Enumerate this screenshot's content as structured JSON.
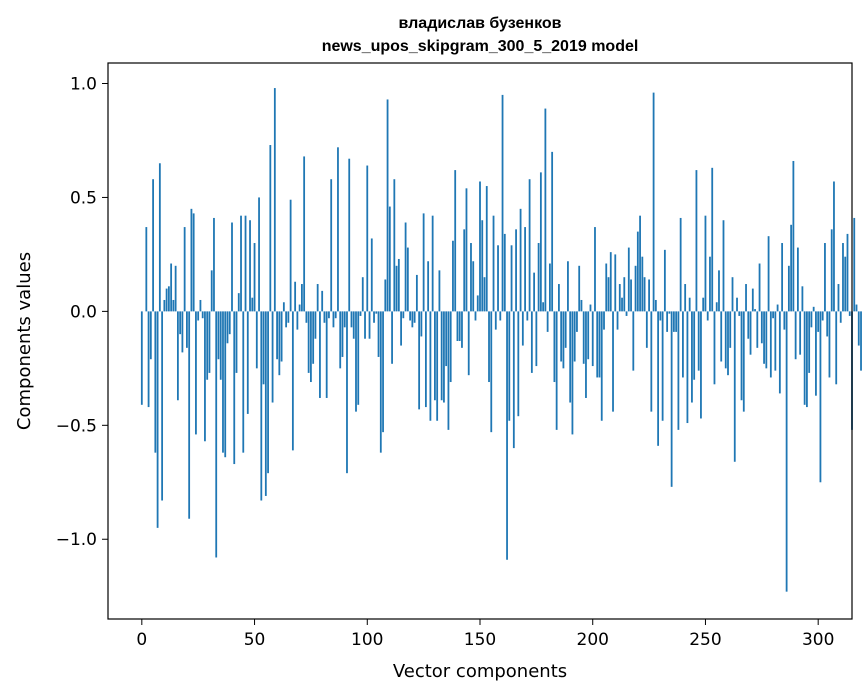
{
  "chart_data": {
    "type": "bar",
    "title_line1": "владислав бузенков",
    "title_line2": "news_upos_skipgram_300_5_2019 model",
    "xlabel": "Vector components",
    "ylabel": "Components values",
    "xlim": [
      -15,
      315
    ],
    "ylim": [
      -1.35,
      1.09
    ],
    "x_ticks": [
      0,
      50,
      100,
      150,
      200,
      250,
      300
    ],
    "x_tick_labels": [
      "0",
      "50",
      "100",
      "150",
      "200",
      "250",
      "300"
    ],
    "y_ticks": [
      1.0,
      0.5,
      0.0,
      -0.5,
      -1.0
    ],
    "y_tick_labels": [
      "1.0",
      "0.5",
      "0.0",
      "−0.5",
      "−1.0"
    ],
    "bar_color": "#1f77b4",
    "grid": false,
    "values": [
      -0.41,
      0.0,
      0.37,
      -0.42,
      -0.21,
      0.58,
      -0.62,
      -0.95,
      0.65,
      -0.83,
      0.05,
      0.1,
      0.11,
      0.21,
      0.05,
      0.2,
      -0.39,
      -0.1,
      -0.18,
      0.37,
      -0.16,
      -0.91,
      0.45,
      0.43,
      -0.54,
      -0.04,
      0.05,
      -0.03,
      -0.57,
      -0.3,
      -0.27,
      0.18,
      0.41,
      -1.08,
      -0.21,
      -0.3,
      -0.62,
      -0.64,
      -0.14,
      -0.1,
      0.39,
      -0.67,
      -0.27,
      0.08,
      0.42,
      -0.62,
      0.42,
      -0.45,
      0.4,
      0.06,
      0.3,
      -0.25,
      0.5,
      -0.83,
      -0.32,
      -0.81,
      -0.71,
      0.73,
      -0.4,
      0.98,
      -0.21,
      -0.28,
      -0.22,
      0.04,
      -0.07,
      -0.05,
      0.49,
      -0.61,
      0.13,
      -0.08,
      0.03,
      0.12,
      0.68,
      -0.05,
      -0.27,
      -0.31,
      -0.23,
      -0.12,
      0.12,
      -0.38,
      0.09,
      -0.05,
      -0.38,
      -0.03,
      0.58,
      -0.07,
      -0.03,
      0.72,
      -0.25,
      -0.2,
      -0.07,
      -0.71,
      0.67,
      -0.07,
      -0.12,
      -0.44,
      -0.41,
      -0.02,
      0.15,
      -0.12,
      0.64,
      -0.12,
      0.32,
      -0.05,
      -0.01,
      -0.2,
      -0.62,
      -0.53,
      0.14,
      0.93,
      0.46,
      -0.23,
      0.58,
      0.2,
      0.23,
      -0.15,
      -0.03,
      0.39,
      0.28,
      -0.04,
      -0.07,
      -0.05,
      0.16,
      -0.43,
      -0.11,
      0.43,
      -0.42,
      0.22,
      -0.48,
      0.42,
      -0.39,
      -0.48,
      0.18,
      -0.39,
      -0.4,
      -0.24,
      -0.52,
      -0.31,
      0.31,
      0.62,
      -0.13,
      -0.13,
      -0.16,
      0.36,
      0.54,
      -0.28,
      0.3,
      0.22,
      -0.04,
      0.07,
      0.57,
      0.4,
      0.15,
      0.55,
      -0.31,
      -0.53,
      0.42,
      -0.08,
      0.29,
      -0.04,
      0.95,
      0.34,
      -1.09,
      -0.48,
      0.29,
      -0.6,
      0.36,
      -0.46,
      0.45,
      -0.15,
      0.37,
      -0.04,
      0.58,
      -0.27,
      0.17,
      -0.24,
      0.3,
      0.61,
      0.04,
      0.89,
      -0.09,
      0.21,
      0.7,
      -0.31,
      -0.52,
      0.12,
      -0.22,
      -0.25,
      -0.16,
      0.22,
      -0.4,
      -0.54,
      -0.22,
      -0.09,
      0.2,
      0.05,
      -0.23,
      -0.38,
      -0.21,
      0.03,
      -0.24,
      0.37,
      -0.29,
      -0.29,
      -0.48,
      -0.08,
      0.21,
      0.15,
      0.26,
      -0.44,
      0.25,
      -0.08,
      0.12,
      0.06,
      0.15,
      -0.02,
      0.28,
      0.14,
      -0.26,
      0.2,
      0.35,
      0.42,
      0.24,
      0.15,
      -0.16,
      0.14,
      -0.44,
      0.96,
      0.05,
      -0.59,
      -0.04,
      -0.48,
      0.27,
      -0.09,
      -0.01,
      -0.77,
      -0.09,
      -0.09,
      -0.52,
      0.41,
      -0.29,
      0.12,
      -0.49,
      0.06,
      -0.4,
      -0.3,
      0.62,
      -0.26,
      -0.47,
      0.06,
      0.42,
      -0.04,
      0.24,
      0.63,
      -0.32,
      0.04,
      0.18,
      -0.22,
      0.4,
      -0.25,
      -0.28,
      -0.16,
      0.15,
      -0.66,
      0.06,
      -0.02,
      -0.39,
      -0.44,
      0.12,
      -0.12,
      -0.19,
      0.1,
      0.01,
      -0.16,
      0.21,
      -0.14,
      -0.23,
      -0.25,
      0.33,
      -0.29,
      -0.03,
      -0.26,
      0.03,
      -0.36,
      0.3,
      -0.08,
      -1.23,
      0.2,
      0.38,
      0.66,
      -0.21,
      0.28,
      -0.19,
      0.11,
      -0.41,
      -0.42,
      -0.27,
      -0.07,
      0.02,
      -0.37,
      -0.09,
      -0.75,
      -0.04,
      0.3,
      -0.11,
      -0.29,
      0.36,
      0.57,
      -0.32,
      0.12,
      -0.05,
      0.3,
      0.24,
      0.34,
      -0.02,
      -0.52,
      0.41,
      0.03,
      -0.15,
      -0.26
    ]
  }
}
